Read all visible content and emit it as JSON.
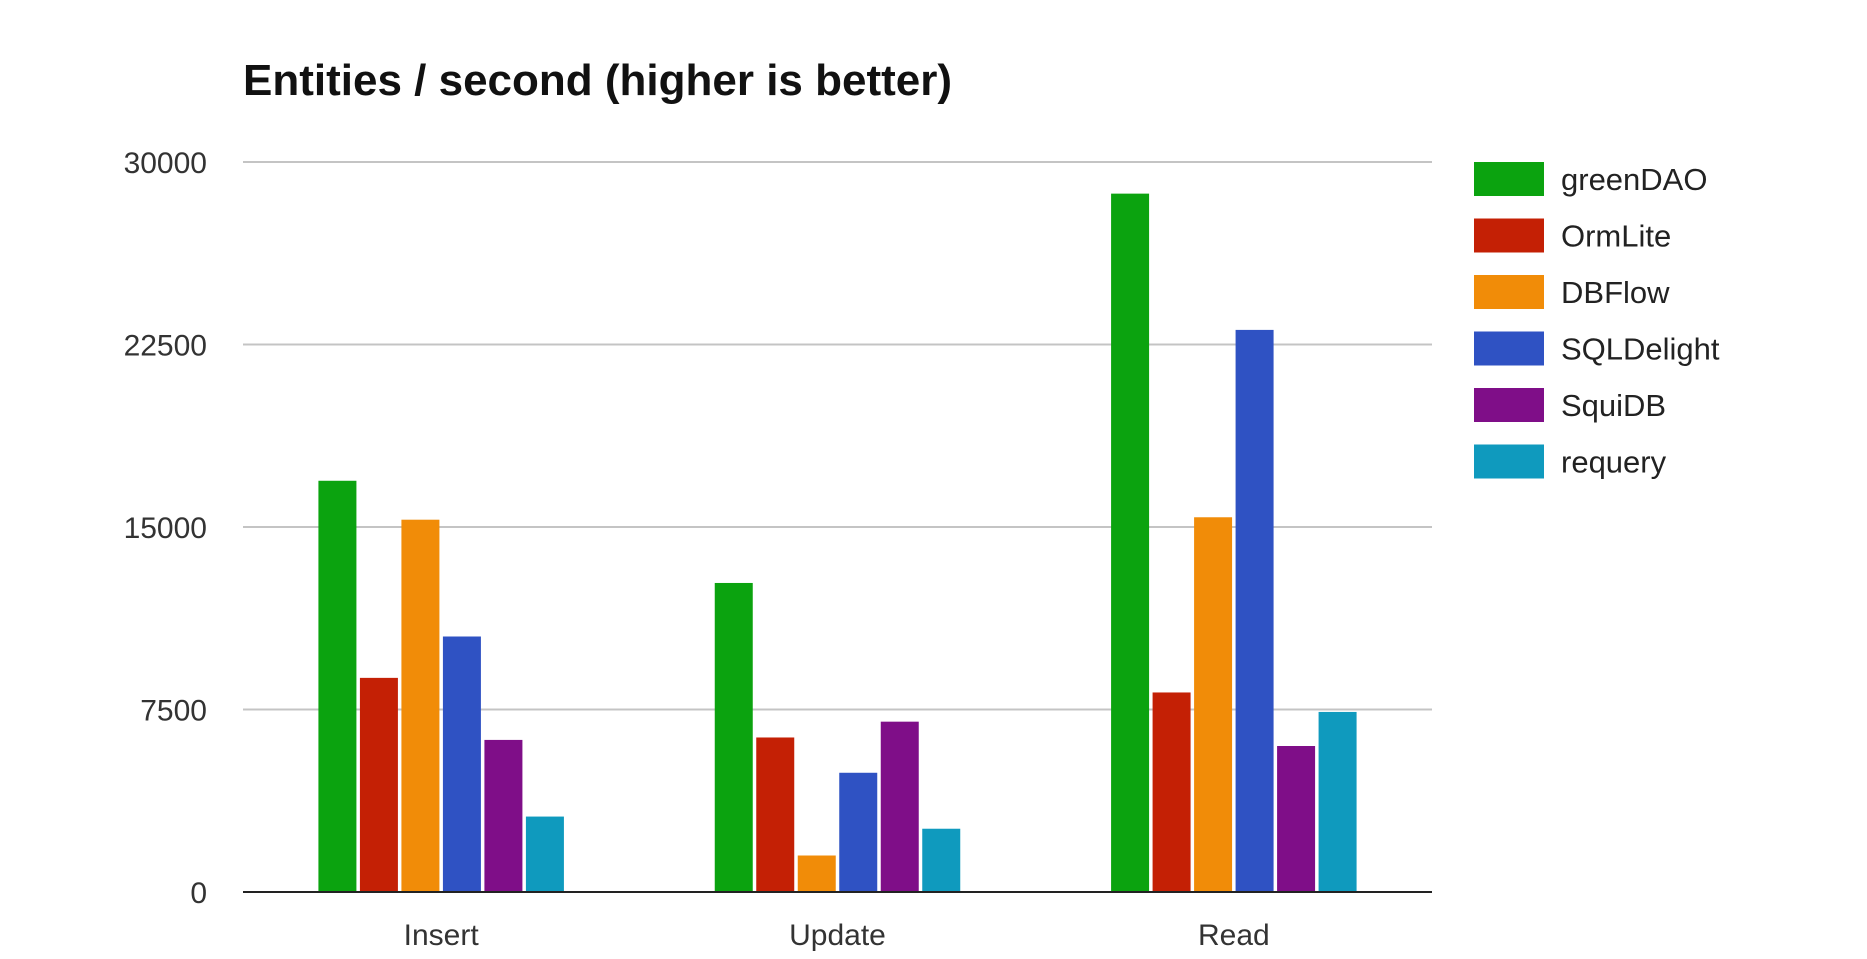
{
  "chart_data": {
    "type": "bar",
    "title": "Entities / second (higher is better)",
    "xlabel": "",
    "ylabel": "",
    "categories": [
      "Insert",
      "Update",
      "Read"
    ],
    "ylim": [
      0,
      30000
    ],
    "yticks": [
      0,
      7500,
      15000,
      22500,
      30000
    ],
    "grid": true,
    "legend_position": "right",
    "series": [
      {
        "name": "greenDAO",
        "color": "#0ba30f",
        "values": [
          16900,
          12700,
          28700
        ]
      },
      {
        "name": "OrmLite",
        "color": "#c42005",
        "values": [
          8800,
          6350,
          8200
        ]
      },
      {
        "name": "DBFlow",
        "color": "#f18c08",
        "values": [
          15300,
          1500,
          15400
        ]
      },
      {
        "name": "SQLDelight",
        "color": "#2f52c3",
        "values": [
          10500,
          4900,
          23100
        ]
      },
      {
        "name": "SquiDB",
        "color": "#7f0e88",
        "values": [
          6250,
          7000,
          6000
        ]
      },
      {
        "name": "requery",
        "color": "#0f9abe",
        "values": [
          3100,
          2600,
          7400
        ]
      }
    ]
  }
}
